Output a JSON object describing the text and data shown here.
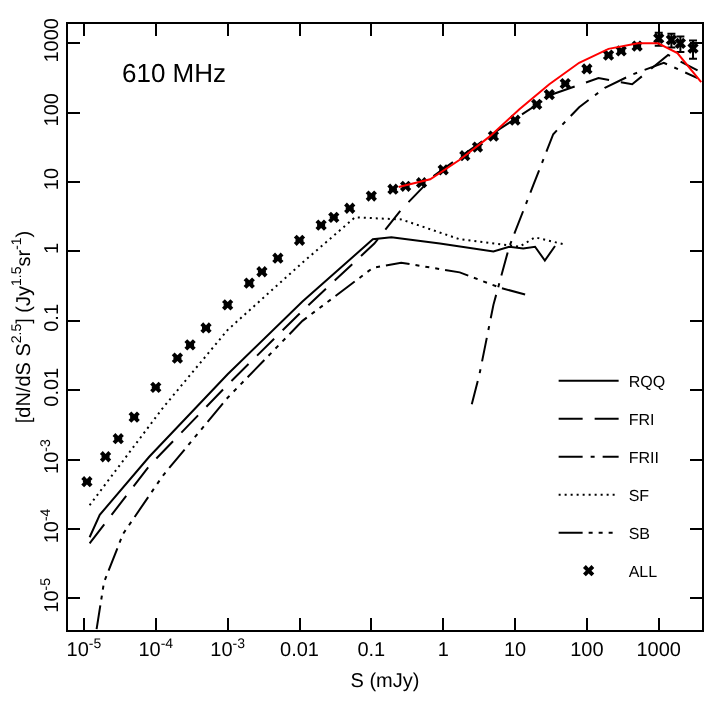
{
  "chart_data": {
    "type": "line",
    "xlabel": "S (mJy)",
    "ylabel": "[dN/dS S$^{2.5}$] (Jy$^{1.5}$sr$^{-1}$)",
    "annotations": [
      "610 MHz"
    ],
    "log": "xy",
    "legend": "bottom right",
    "xlim": [
      6e-06,
      4000
    ],
    "ylim": [
      3.5e-06,
      1900
    ],
    "xticks": [
      {
        "value": 1e-05,
        "label": "10$^{-5}$"
      },
      {
        "value": 0.0001,
        "label": "10$^{-4}$"
      },
      {
        "value": 0.001,
        "label": "10$^{-3}$"
      },
      0.01,
      0.1,
      1,
      10,
      100,
      1000
    ],
    "yticks": [
      {
        "value": 1e-05,
        "label": "10$^{-5}$"
      },
      {
        "value": 0.0001,
        "label": "10$^{-4}$"
      },
      {
        "value": 0.001,
        "label": "10$^{-3}$"
      },
      0.01,
      0.1,
      1,
      10,
      100,
      1000
    ],
    "series": [
      {
        "name": "RQQ",
        "color": "#000000",
        "line_style": "solid",
        "marker": "none",
        "x": [
          1.2e-05,
          1.66e-05,
          8.1e-05,
          0.001,
          0.011,
          0.105,
          0.19,
          0.9,
          5,
          8.3,
          13,
          19,
          26,
          36
        ],
        "values": [
          7.6e-05,
          0.00016,
          0.0011,
          0.017,
          0.19,
          1.5,
          1.6,
          1.3,
          1.0,
          1.17,
          1.1,
          1.17,
          0.74,
          1.2
        ]
      },
      {
        "name": "FRI",
        "color": "#000000",
        "line_style": "dashed",
        "marker": "none",
        "x": [
          1.2e-05,
          8.1e-05,
          0.001,
          0.011,
          0.11,
          0.26,
          0.76,
          6.2,
          34,
          145,
          427,
          1350,
          3470
        ],
        "values": [
          6.2e-05,
          0.00081,
          0.012,
          0.14,
          1.3,
          4.0,
          12.6,
          59,
          186,
          316,
          257,
          680,
          407
        ]
      },
      {
        "name": "FRII",
        "color": "#000000",
        "line_style": "dashdot",
        "marker": "none",
        "x": [
          2.5,
          3.2,
          5,
          8.3,
          18,
          34,
          78,
          178,
          427,
          1175,
          3470
        ],
        "values": [
          0.0063,
          0.017,
          0.17,
          1.17,
          9.1,
          49,
          120,
          229,
          355,
          525,
          316
        ]
      },
      {
        "name": "SF",
        "color": "#000000",
        "line_style": "dotted",
        "marker": "none",
        "x": [
          1.2e-05,
          0.000126,
          0.001,
          0.011,
          0.059,
          0.26,
          1.7,
          11.5,
          19,
          49
        ],
        "values": [
          0.00022,
          0.0056,
          0.074,
          0.69,
          3.1,
          2.9,
          1.5,
          1.17,
          1.6,
          1.26
        ]
      },
      {
        "name": "SB",
        "color": "#000000",
        "line_style": "dashdotdot",
        "marker": "none",
        "x": [
          1.5e-05,
          1.9e-05,
          3.5e-05,
          0.000126,
          0.001,
          0.011,
          0.105,
          0.26,
          1.7,
          6.2,
          16
        ],
        "values": [
          3.6e-06,
          1.7e-05,
          8.5e-05,
          0.00059,
          0.0078,
          0.1,
          0.58,
          0.69,
          0.5,
          0.3,
          0.23
        ]
      },
      {
        "name": "ALL",
        "type": "scatter",
        "color": "#000000",
        "marker": "cross",
        "x": [
          1.1e-05,
          2e-05,
          3e-05,
          5e-05,
          0.0001,
          0.0002,
          0.0003,
          0.0005,
          0.001,
          0.002,
          0.003,
          0.005,
          0.01,
          0.02,
          0.03,
          0.05,
          0.1,
          0.2,
          0.3,
          0.5,
          1,
          2,
          3,
          5,
          10,
          20,
          30,
          50,
          100,
          200,
          300,
          500,
          1000,
          1500,
          2000,
          3000
        ],
        "values": [
          0.00048,
          0.0011,
          0.002,
          0.0041,
          0.011,
          0.029,
          0.045,
          0.079,
          0.17,
          0.35,
          0.51,
          0.8,
          1.45,
          2.4,
          3.1,
          4.2,
          6.3,
          7.9,
          8.7,
          9.8,
          15,
          24,
          32,
          46,
          78,
          132,
          182,
          263,
          427,
          676,
          776,
          912,
          1175,
          1120,
          1000,
          851
        ],
        "errors": [
          null,
          null,
          null,
          null,
          null,
          null,
          null,
          null,
          null,
          null,
          null,
          null,
          null,
          null,
          null,
          null,
          null,
          null,
          null,
          null,
          null,
          null,
          null,
          null,
          null,
          null,
          null,
          null,
          null,
          null,
          null,
          null,
          250,
          250,
          250,
          250
        ]
      },
      {
        "color": "#ff0000",
        "line_style": "solid",
        "marker": "none",
        "x": [
          0.24,
          0.66,
          1.7,
          4.5,
          11.5,
          30,
          78,
          200,
          513,
          980,
          1820,
          3900
        ],
        "values": [
          8.5,
          11,
          21,
          46,
          112,
          257,
          525,
          832,
          1000,
          1000,
          724,
          275
        ]
      }
    ]
  }
}
